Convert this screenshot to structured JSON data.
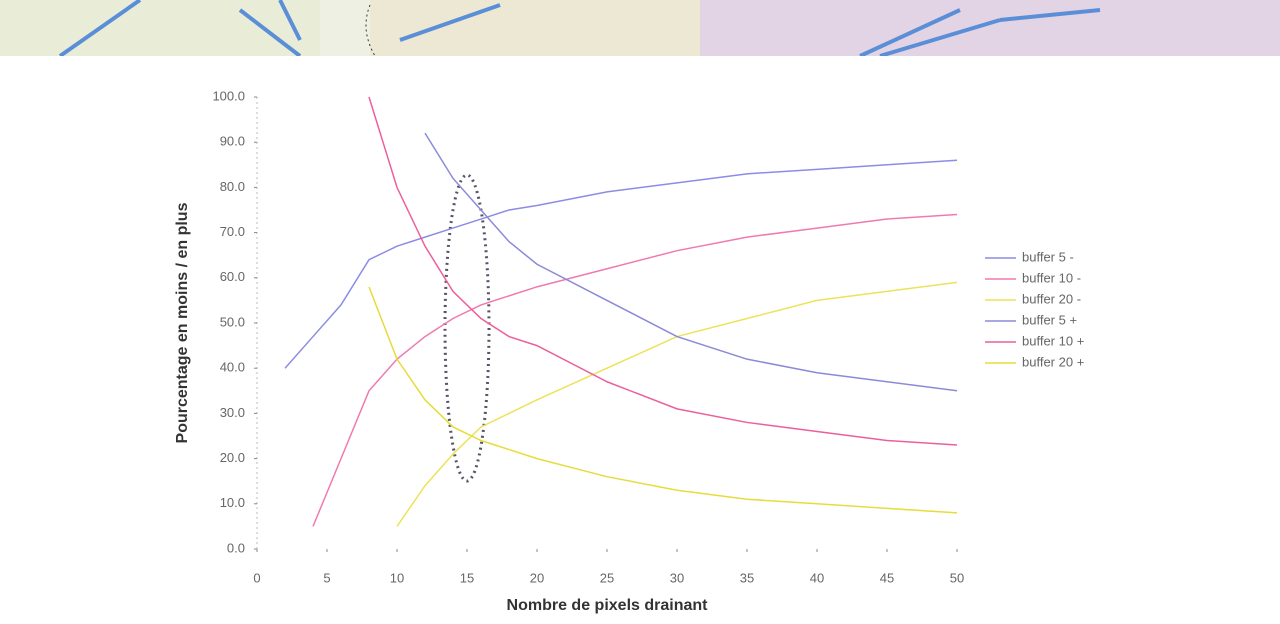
{
  "chart_data": {
    "type": "line",
    "x_label": "Nombre de pixels drainant",
    "y_label": "Pourcentage en moins / en plus",
    "x": [
      2,
      4,
      6,
      8,
      10,
      12,
      14,
      16,
      18,
      20,
      25,
      30,
      35,
      40,
      45,
      50
    ],
    "series": [
      {
        "name": "buffer 5 -",
        "color": "#8c8ce6",
        "values": [
          40,
          47,
          54,
          64,
          67,
          69,
          71,
          73,
          75,
          76,
          79,
          81,
          83,
          84,
          85,
          86
        ]
      },
      {
        "name": "buffer 10 -",
        "color": "#f07ab0",
        "values": [
          null,
          5,
          20,
          35,
          42,
          47,
          51,
          54,
          56,
          58,
          62,
          66,
          69,
          71,
          73,
          74
        ]
      },
      {
        "name": "buffer 20 -",
        "color": "#ece35a",
        "values": [
          null,
          null,
          null,
          null,
          5,
          14,
          21,
          27,
          30,
          33,
          40,
          47,
          51,
          55,
          57,
          59
        ]
      },
      {
        "name": "buffer 5 +",
        "color": "#8a8ad8",
        "values": [
          null,
          null,
          null,
          null,
          null,
          92,
          82,
          75,
          68,
          63,
          55,
          47,
          42,
          39,
          37,
          35
        ]
      },
      {
        "name": "buffer 10 +",
        "color": "#ec5f9c",
        "values": [
          null,
          null,
          null,
          100,
          80,
          67,
          57,
          51,
          47,
          45,
          37,
          31,
          28,
          26,
          24,
          23
        ]
      },
      {
        "name": "buffer 20 +",
        "color": "#e6dc3c",
        "values": [
          null,
          null,
          null,
          58,
          42,
          33,
          27,
          24,
          22,
          20,
          16,
          13,
          11,
          10,
          9,
          8
        ]
      }
    ],
    "xlim": [
      0,
      50
    ],
    "xticks": [
      0,
      5,
      10,
      15,
      20,
      25,
      30,
      35,
      40,
      45,
      50
    ],
    "ylim": [
      0,
      100
    ],
    "yticks": [
      {
        "value": 0,
        "label": "0.0"
      },
      {
        "value": 10,
        "label": "10.0"
      },
      {
        "value": 20,
        "label": "20.0"
      },
      {
        "value": 30,
        "label": "30.0"
      },
      {
        "value": 40,
        "label": "40.0"
      },
      {
        "value": 50,
        "label": "50.0"
      },
      {
        "value": 60,
        "label": "60.0"
      },
      {
        "value": 70,
        "label": "70.0"
      },
      {
        "value": 80,
        "label": "80.0"
      },
      {
        "value": 90,
        "label": "90.0"
      },
      {
        "value": 100,
        "label": "100.0"
      }
    ],
    "grid": false
  }
}
